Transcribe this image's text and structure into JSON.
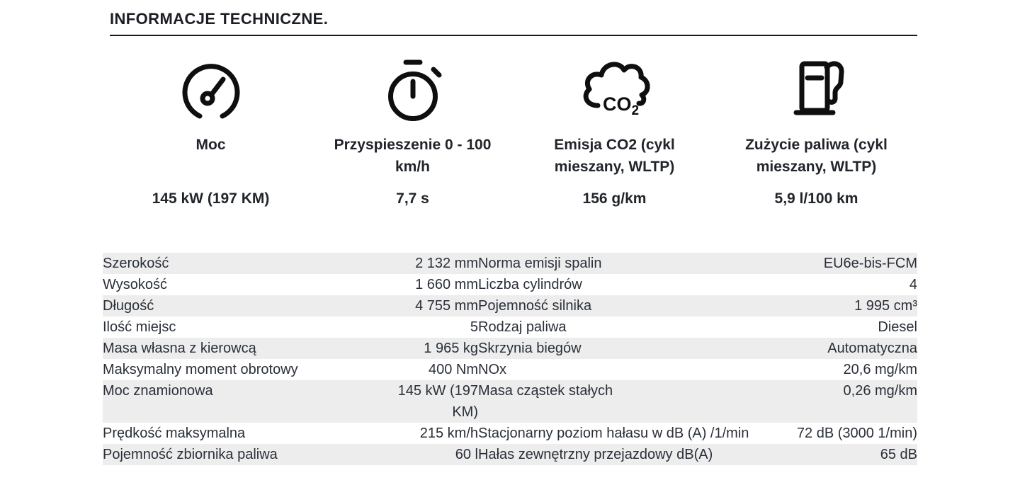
{
  "title": "INFORMACJE TECHNICZNE.",
  "stats": [
    {
      "icon": "speedometer-icon",
      "label": "Moc",
      "value": "145 kW (197 KM)"
    },
    {
      "icon": "stopwatch-icon",
      "label": "Przyspieszenie 0 - 100 km/h",
      "value": "7,7 s"
    },
    {
      "icon": "co2-cloud-icon",
      "label": "Emisja CO2 (cykl mieszany, WLTP)",
      "value": "156 g/km"
    },
    {
      "icon": "fuel-pump-icon",
      "label": "Zużycie paliwa (cykl mieszany, WLTP)",
      "value": "5,9 l/100 km"
    }
  ],
  "co2_icon_text": {
    "main": "CO",
    "sub": "2"
  },
  "spec_table": {
    "rows": [
      {
        "left_label": "Szerokość",
        "left_value": "2 132 mm",
        "right_label": "Norma emisji spalin",
        "right_value": "EU6e-bis-FCM"
      },
      {
        "left_label": "Wysokość",
        "left_value": "1 660 mm",
        "right_label": "Liczba cylindrów",
        "right_value": "4"
      },
      {
        "left_label": "Długość",
        "left_value": "4 755 mm",
        "right_label": "Pojemność silnika",
        "right_value": "1 995 cm³"
      },
      {
        "left_label": "Ilość miejsc",
        "left_value": "5",
        "right_label": "Rodzaj paliwa",
        "right_value": "Diesel"
      },
      {
        "left_label": "Masa własna z kierowcą",
        "left_value": "1 965 kg",
        "right_label": "Skrzynia biegów",
        "right_value": "Automatyczna"
      },
      {
        "left_label": "Maksymalny moment obrotowy",
        "left_value": "400 Nm",
        "right_label": "NOx",
        "right_value": "20,6 mg/km"
      },
      {
        "left_label": "Moc znamionowa",
        "left_value": "145 kW (197 KM)",
        "right_label": "Masa cząstek stałych",
        "right_value": "0,26 mg/km"
      },
      {
        "left_label": "Prędkość maksymalna",
        "left_value": "215 km/h",
        "right_label": "Stacjonarny poziom hałasu w dB (A) /1/min",
        "right_value": "72 dB (3000 1/min)"
      },
      {
        "left_label": "Pojemność zbiornika paliwa",
        "left_value": "60 l",
        "right_label": "Hałas zewnętrzny przejazdowy dB(A)",
        "right_value": "65 dB"
      }
    ]
  },
  "colors": {
    "stripe": "#ededed",
    "text": "#2a3039",
    "title": "#1b1e24",
    "icon": "#0f0f0f"
  }
}
